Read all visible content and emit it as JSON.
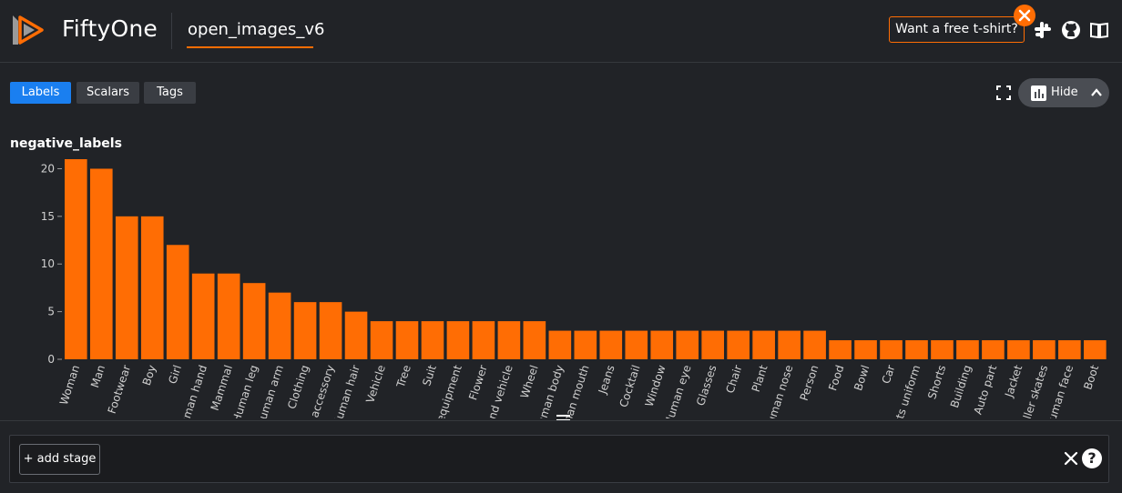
{
  "header": {
    "app_name": "FiftyOne",
    "dataset_name": "open_images_v6",
    "promo_label": "Want a free t-shirt?",
    "icons": [
      "fiftyone-logo-icon",
      "slack-icon",
      "github-icon",
      "docs-book-icon"
    ]
  },
  "toolbar": {
    "tabs": [
      {
        "label": "Labels",
        "active": true
      },
      {
        "label": "Scalars",
        "active": false
      },
      {
        "label": "Tags",
        "active": false
      }
    ],
    "hide_label": "Hide"
  },
  "colors": {
    "accent": "#ff6d04",
    "active_tab": "#1a7ff0",
    "background": "#212327"
  },
  "chart_data": {
    "type": "bar",
    "title": "negative_labels",
    "categories": [
      "Woman",
      "Man",
      "Footwear",
      "Boy",
      "Girl",
      "Human hand",
      "Mammal",
      "Human leg",
      "Human arm",
      "Clothing",
      "Fashion accessory",
      "Human hair",
      "Vehicle",
      "Tree",
      "Suit",
      "Sports equipment",
      "Flower",
      "Land vehicle",
      "Wheel",
      "Human body",
      "Human mouth",
      "Jeans",
      "Cocktail",
      "Window",
      "Human eye",
      "Glasses",
      "Chair",
      "Plant",
      "Human nose",
      "Person",
      "Food",
      "Bowl",
      "Car",
      "Sports uniform",
      "Shorts",
      "Building",
      "Auto part",
      "Jacket",
      "Roller skates",
      "Human face",
      "Boot"
    ],
    "values": [
      21,
      20,
      15,
      15,
      12,
      9,
      9,
      8,
      7,
      6,
      6,
      5,
      4,
      4,
      4,
      4,
      4,
      4,
      4,
      3,
      3,
      3,
      3,
      3,
      3,
      3,
      3,
      3,
      3,
      3,
      2,
      2,
      2,
      2,
      2,
      2,
      2,
      2,
      2,
      2,
      2
    ],
    "yticks": [
      0,
      5,
      10,
      15,
      20
    ],
    "ylim": [
      0,
      21
    ],
    "color": "#ff6d04",
    "grid": false,
    "legend": "none"
  },
  "stage_bar": {
    "add_stage_label": "+ add stage",
    "help_label": "?"
  }
}
